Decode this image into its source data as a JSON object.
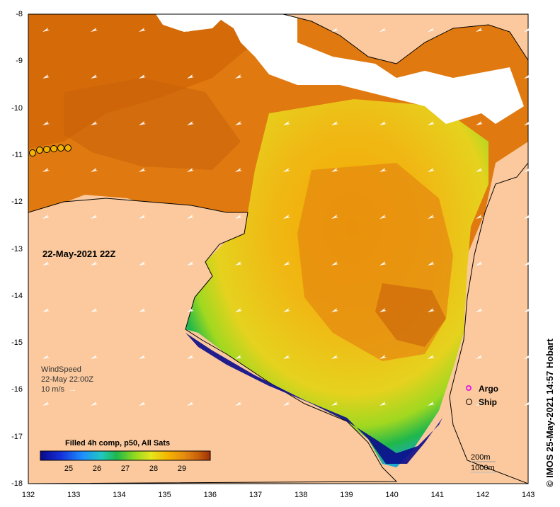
{
  "map": {
    "date_label": "22-May-2021 22Z",
    "wind": {
      "title": "WindSpeed",
      "time": "22-May 22:00Z",
      "scale": "10 m/s"
    },
    "colorbar": {
      "title": "Filled 4h comp, p50, All Sats",
      "ticks": [
        "25",
        "26",
        "27",
        "28",
        "29"
      ],
      "range": [
        24.0,
        30.0
      ],
      "colors": [
        "#0a0a8c",
        "#1430d8",
        "#1e90ff",
        "#20c8c0",
        "#20b84a",
        "#8cd820",
        "#e6e61e",
        "#f5b400",
        "#e58a10",
        "#c8600a",
        "#a0300a"
      ]
    },
    "markers": {
      "argo": "Argo",
      "ship": "Ship"
    },
    "depth_contours": [
      "200m",
      "1000m"
    ],
    "credit": "© IMOS 25-May-2021 14:57 Hobart",
    "x_axis_labels": [
      "132",
      "133",
      "134",
      "135",
      "136",
      "137",
      "138",
      "139",
      "140",
      "141",
      "142",
      "143"
    ],
    "y_axis_labels": [
      "-8",
      "-9",
      "-10",
      "-11",
      "-12",
      "-13",
      "-14",
      "-15",
      "-16",
      "-17",
      "-18"
    ],
    "land_color": "#fbc99d",
    "no_data_color": "#ffffff"
  }
}
